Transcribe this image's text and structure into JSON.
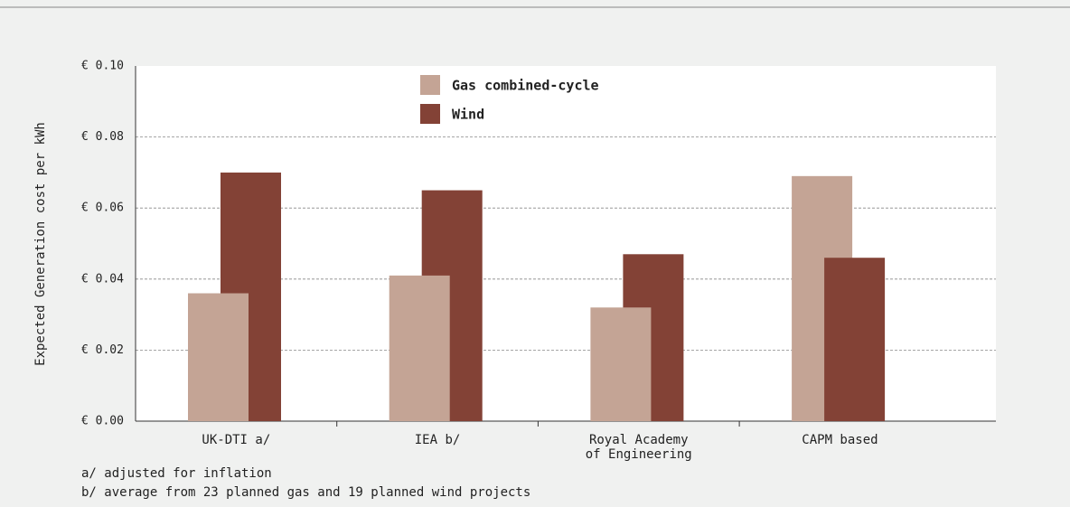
{
  "chart_data": {
    "type": "bar",
    "y_label": "Expected Generation cost per kWh",
    "categories": [
      "UK-DTI a/",
      "IEA b/",
      "Royal Academy\nof Engineering",
      "CAPM based"
    ],
    "series": [
      {
        "name": "Gas combined-cycle",
        "color": "#c4a495",
        "values": [
          0.036,
          0.041,
          0.032,
          0.069
        ]
      },
      {
        "name": "Wind",
        "color": "#834236",
        "values": [
          0.07,
          0.065,
          0.047,
          0.046
        ]
      }
    ],
    "ylim": [
      0,
      0.1
    ],
    "yticks": [
      {
        "value": 0,
        "label": "€ 0.00"
      },
      {
        "value": 0.02,
        "label": "€ 0.02"
      },
      {
        "value": 0.04,
        "label": "€ 0.04"
      },
      {
        "value": 0.06,
        "label": "€ 0.06"
      },
      {
        "value": 0.08,
        "label": "€ 0.08"
      },
      {
        "value": 0.1,
        "label": "€ 0.10"
      }
    ],
    "grid": true,
    "legend": "top",
    "notes": [
      "a/ adjusted for inflation",
      "b/ average from 23 planned gas and 19 planned wind projects"
    ]
  }
}
